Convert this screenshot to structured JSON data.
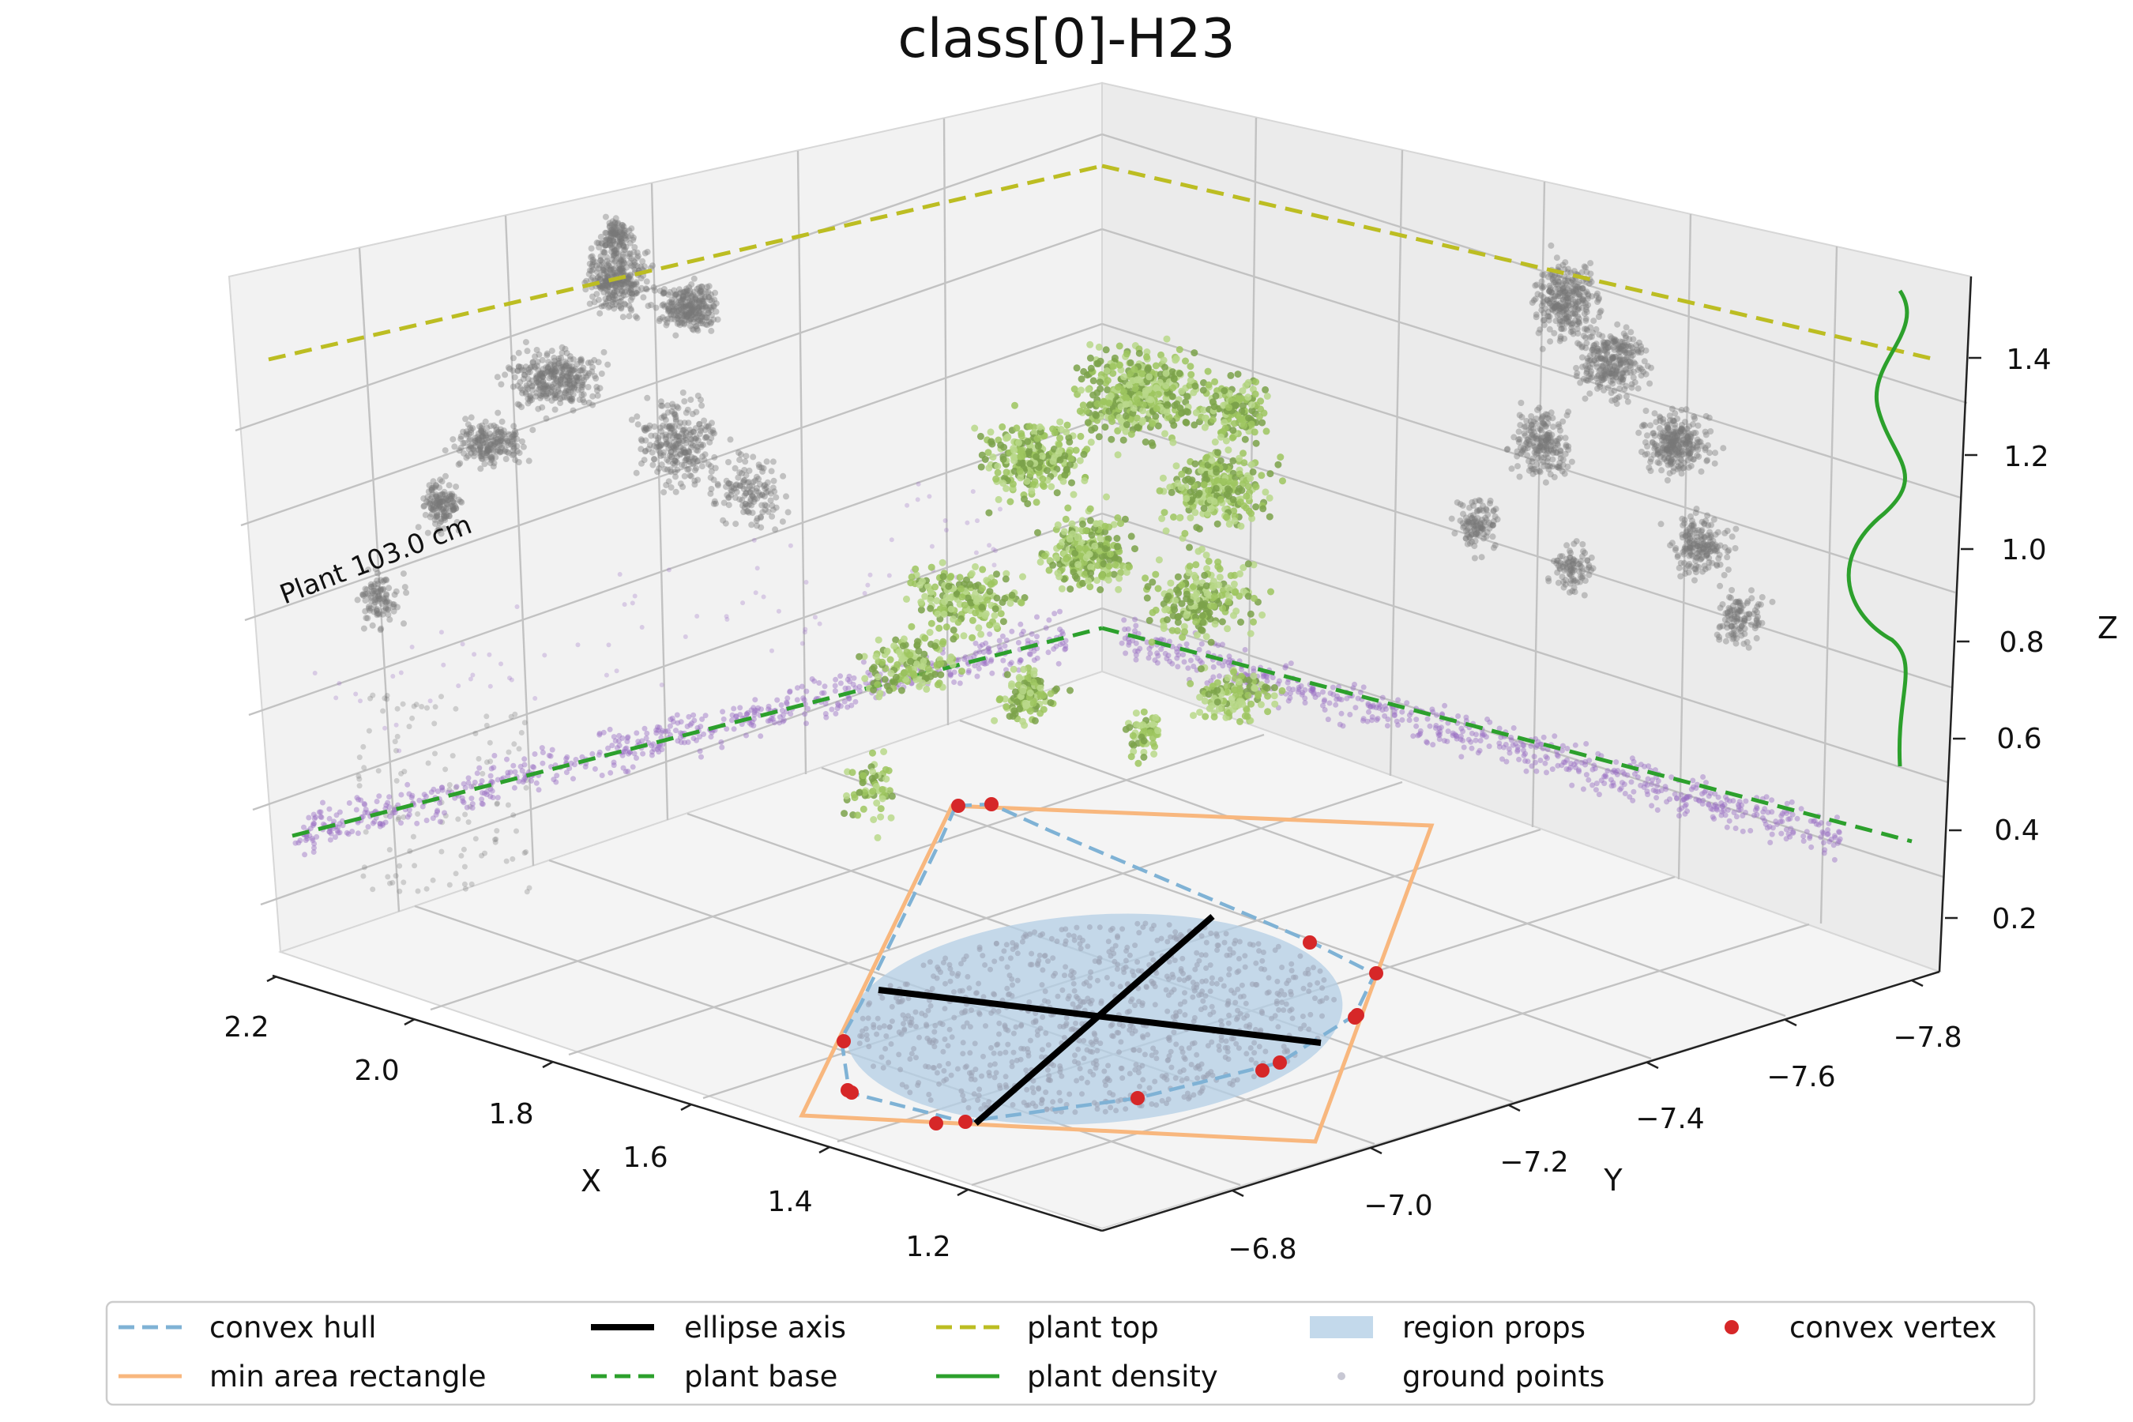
{
  "chart_data": {
    "type": "scatter",
    "projection": "3d",
    "title": "class[0]-H23",
    "xlabel": "X",
    "ylabel": "Y",
    "zlabel": "Z",
    "xlim": [
      1.1,
      2.25
    ],
    "ylim": [
      -7.9,
      -6.7
    ],
    "zlim": [
      0.1,
      1.5
    ],
    "x_ticks": [
      "2.2",
      "2.0",
      "1.8",
      "1.6",
      "1.4",
      "1.2"
    ],
    "y_ticks": [
      "−6.8",
      "−7.0",
      "−7.2",
      "−7.4",
      "−7.6",
      "−7.8"
    ],
    "z_ticks": [
      "0.2",
      "0.4",
      "0.6",
      "0.8",
      "1.0",
      "1.2",
      "1.4"
    ],
    "grid": true,
    "annotation": "Plant 103.0 cm",
    "plant_top_z": 1.45,
    "plant_base_z": 0.42,
    "plant_height_cm": 103.0,
    "ellipse_center": [
      1.62,
      -7.3
    ],
    "convex_vertices": [
      [
        1.92,
        -7.05
      ],
      [
        1.9,
        -7.0
      ],
      [
        1.45,
        -7.55
      ],
      [
        1.33,
        -7.5
      ],
      [
        1.25,
        -7.35
      ],
      [
        1.22,
        -7.2
      ],
      [
        1.3,
        -7.02
      ],
      [
        1.45,
        -6.95
      ],
      [
        1.55,
        -6.92
      ],
      [
        1.62,
        -6.92
      ],
      [
        1.75,
        -6.95
      ],
      [
        1.82,
        -7.0
      ],
      [
        1.78,
        -7.6
      ],
      [
        1.5,
        -7.7
      ]
    ],
    "legend": {
      "placement": "lower center",
      "items": [
        {
          "label": "convex hull",
          "style": "dashed-line",
          "color": "#7fb2d5"
        },
        {
          "label": "min area rectangle",
          "style": "line",
          "color": "#f8b77e"
        },
        {
          "label": "ellipse axis",
          "style": "thick-line",
          "color": "#000000"
        },
        {
          "label": "plant base",
          "style": "dashed-line",
          "color": "#2ca02c"
        },
        {
          "label": "plant top",
          "style": "dashed-line",
          "color": "#bcbd22"
        },
        {
          "label": "plant density",
          "style": "line",
          "color": "#2ca02c"
        },
        {
          "label": "region props",
          "style": "patch",
          "color": "#b4cfe6"
        },
        {
          "label": "ground points",
          "style": "dot",
          "color": "#c8c8d4"
        },
        {
          "label": "convex vertex",
          "style": "dot",
          "color": "#d62728"
        }
      ]
    },
    "colors": {
      "plant_points": [
        "#9dc65f",
        "#7ba24a",
        "#b9d88a"
      ],
      "projection_points": "#777777",
      "base_projection_points": "#9a6fc4",
      "ground_points": "#9aa3b5"
    }
  }
}
